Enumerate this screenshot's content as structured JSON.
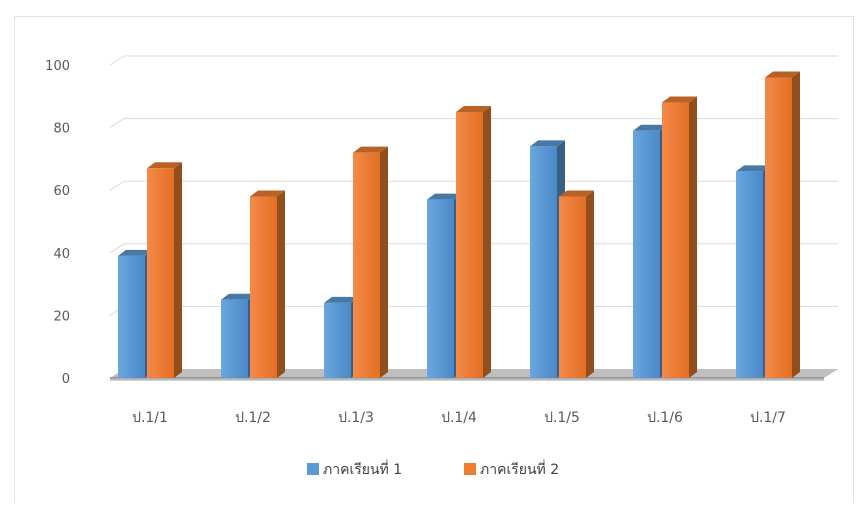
{
  "chart_data": {
    "type": "bar",
    "title": "",
    "xlabel": "",
    "ylabel": "",
    "categories": [
      "ป.1/1",
      "ป.1/2",
      "ป.1/3",
      "ป.1/4",
      "ป.1/5",
      "ป.1/6",
      "ป.1/7"
    ],
    "series": [
      {
        "name": "ภาคเรียนที่ 1",
        "values": [
          39,
          25,
          24,
          57,
          74,
          79,
          66
        ],
        "color": "#5b9bd5"
      },
      {
        "name": "ภาคเรียนที่ 2",
        "values": [
          67,
          58,
          72,
          85,
          58,
          88,
          96
        ],
        "color": "#ed7d31"
      }
    ],
    "ylim": [
      0,
      100
    ],
    "yticks": [
      0,
      20,
      40,
      60,
      80,
      100
    ],
    "grid": true,
    "legend": "bottom",
    "style": "3d-clustered-column"
  }
}
